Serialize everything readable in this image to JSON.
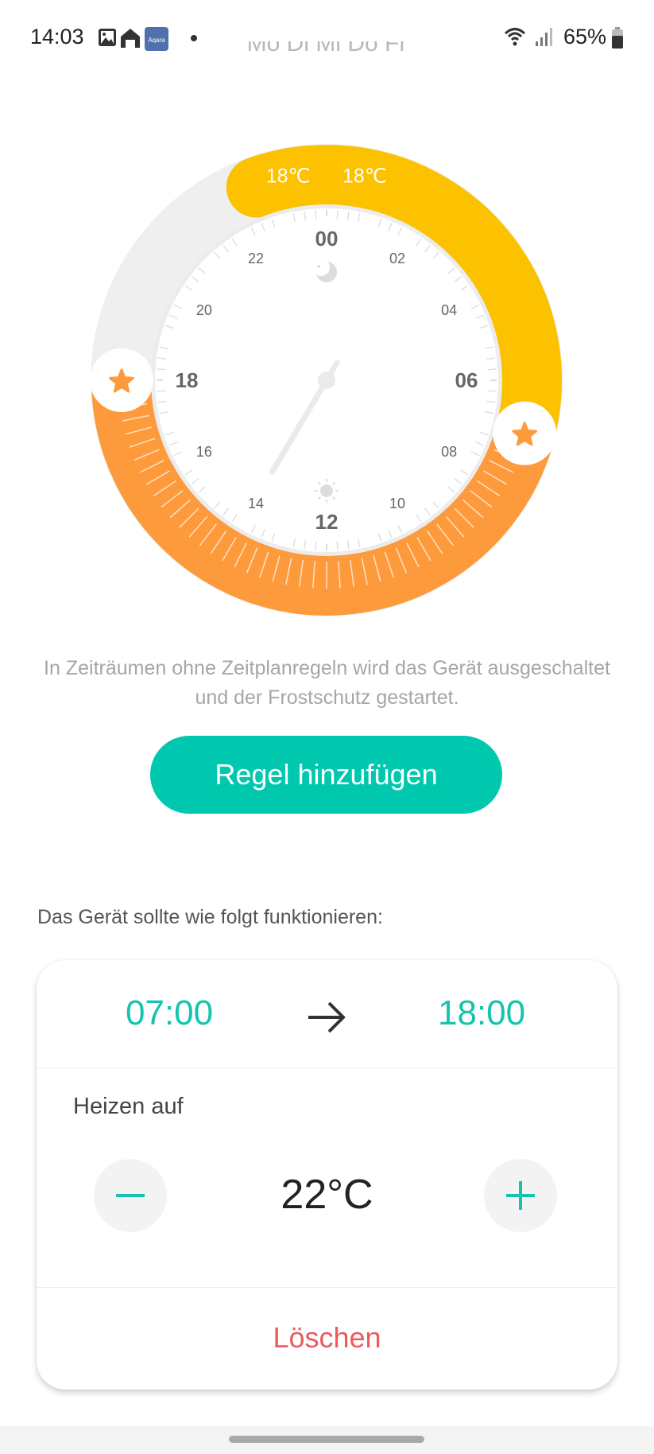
{
  "status_bar": {
    "time": "14:03",
    "app_icon_label": "Aqara",
    "battery": "65%",
    "icons": [
      "gallery-icon",
      "home-icon",
      "aqara-app-icon",
      "notification-dot-icon",
      "wifi-icon",
      "signal-icon",
      "battery-icon"
    ]
  },
  "schedule": {
    "days": "Mo Di Mi Do Fr",
    "dial": {
      "hour_labels_major": [
        "00",
        "06",
        "12",
        "18"
      ],
      "hour_labels_minor": [
        "02",
        "04",
        "08",
        "10",
        "14",
        "16",
        "20",
        "22"
      ],
      "segments": [
        {
          "start": "22:40",
          "end": "23:55",
          "label": "18℃",
          "color": "#fcc200"
        },
        {
          "start": "00:05",
          "end": "07:00",
          "label": "18℃",
          "color": "#fcc200"
        },
        {
          "start": "07:00",
          "end": "18:00",
          "label": "",
          "color": "#fd9a3c",
          "selected": true
        }
      ],
      "current_time": "14:03",
      "night_icon": "moon-icon",
      "day_icon": "sun-icon",
      "handle_icon": "star-icon"
    }
  },
  "description": "In Zeiträumen ohne Zeitplanregeln wird das Gerät ausgeschaltet und der Frostschutz gestartet.",
  "add_rule_label": "Regel hinzufügen",
  "hint": "Das Gerät sollte wie folgt funktionieren:",
  "rule": {
    "start": "07:00",
    "end": "18:00",
    "mode_label": "Heizen auf",
    "temperature": "22°C",
    "delete_label": "Löschen"
  },
  "colors": {
    "accent": "#00c8ae",
    "orange": "#fd9a3c",
    "yellow": "#fcc200",
    "delete": "#ec5a5e"
  }
}
